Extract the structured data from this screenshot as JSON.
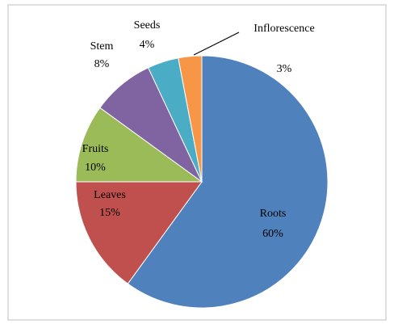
{
  "chart_data": {
    "type": "pie",
    "categories": [
      "Roots",
      "Leaves",
      "Fruits",
      "Stem",
      "Seeds",
      "Inflorescence"
    ],
    "values": [
      60,
      15,
      10,
      8,
      4,
      3
    ],
    "value_labels": [
      "60%",
      "15%",
      "10%",
      "8%",
      "4%",
      "3%"
    ],
    "colors": [
      "#4f81bd",
      "#c0504d",
      "#9bbb59",
      "#8064a2",
      "#4bacc6",
      "#f79646"
    ]
  }
}
